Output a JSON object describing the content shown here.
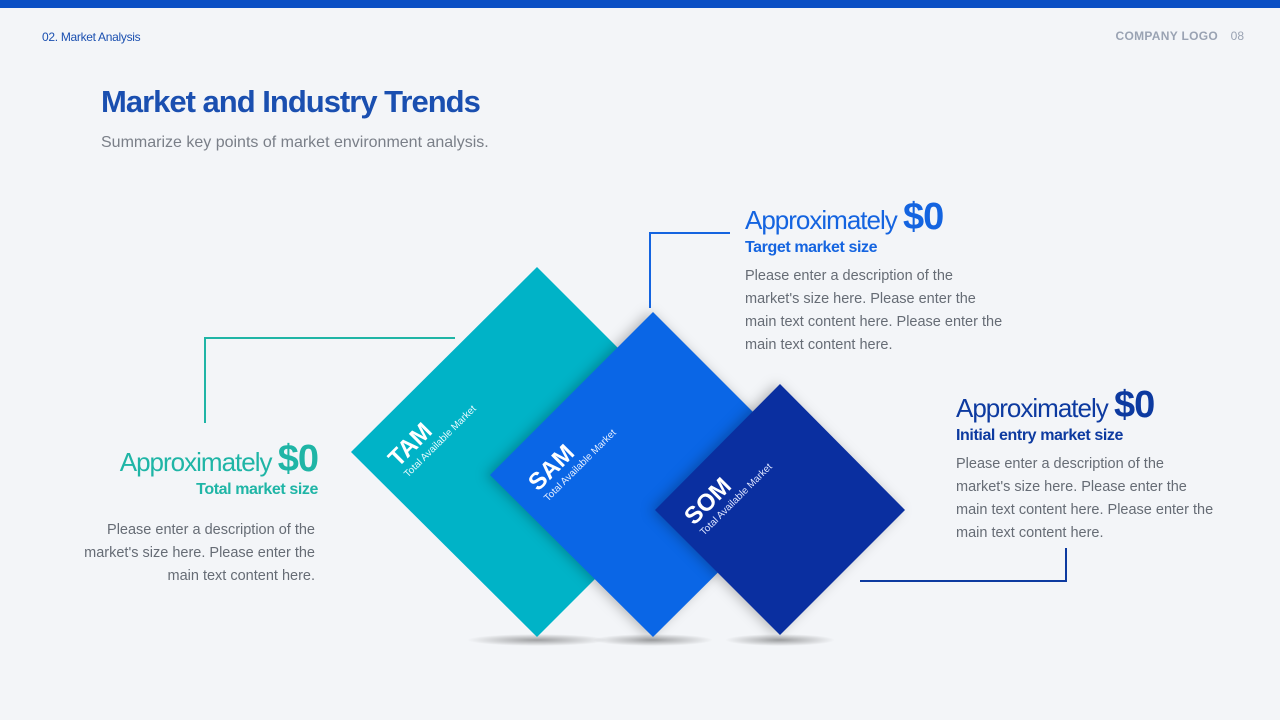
{
  "header": {
    "section": "02. Market Analysis",
    "logo": "COMPANY LOGO",
    "page": "08"
  },
  "title": "Market and Industry Trends",
  "subtitle": "Summarize key points of market environment analysis.",
  "blocks": [
    {
      "label": "TAM",
      "sublabel": "Total Available Market",
      "heading": "Approximately",
      "value": "$0",
      "caption": "Total market size",
      "description": "Please enter a description of the market's size here. Please enter the main text content here."
    },
    {
      "label": "SAM",
      "sublabel": "Total Available Market",
      "heading": "Approximately",
      "value": "$0",
      "caption": "Target market size",
      "description": "Please enter a description of the market's size here. Please enter the main text content here. Please enter the main text content here."
    },
    {
      "label": "SOM",
      "sublabel": "Total Available Market",
      "heading": "Approximately",
      "value": "$0",
      "caption": "Initial entry market size",
      "description": "Please enter a description of the market's size here. Please enter the main text content here. Please enter the main text content here."
    }
  ]
}
